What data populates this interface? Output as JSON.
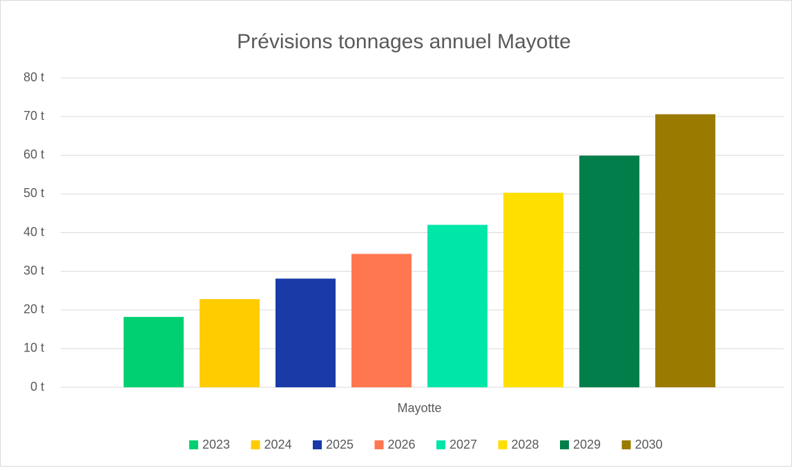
{
  "chart_data": {
    "type": "bar",
    "title": "Prévisions tonnages annuel Mayotte",
    "categories": [
      "Mayotte"
    ],
    "series": [
      {
        "name": "2023",
        "color": "#00d072",
        "values": [
          18.2
        ]
      },
      {
        "name": "2024",
        "color": "#ffcc00",
        "values": [
          22.8
        ]
      },
      {
        "name": "2025",
        "color": "#1a3aa8",
        "values": [
          28.1
        ]
      },
      {
        "name": "2026",
        "color": "#ff7751",
        "values": [
          34.5
        ]
      },
      {
        "name": "2027",
        "color": "#00e6a8",
        "values": [
          42
        ]
      },
      {
        "name": "2028",
        "color": "#ffdf00",
        "values": [
          50.3
        ]
      },
      {
        "name": "2029",
        "color": "#007f4a",
        "values": [
          59.9
        ]
      },
      {
        "name": "2030",
        "color": "#9a7b00",
        "values": [
          70.6
        ]
      }
    ],
    "ylim": [
      0,
      80
    ],
    "yticks": [
      {
        "value": 0,
        "label": "0 t"
      },
      {
        "value": 10,
        "label": "10 t"
      },
      {
        "value": 20,
        "label": "20 t"
      },
      {
        "value": 30,
        "label": "30 t"
      },
      {
        "value": 40,
        "label": "40 t"
      },
      {
        "value": 50,
        "label": "50 t"
      },
      {
        "value": 60,
        "label": "60 t"
      },
      {
        "value": 70,
        "label": "70 t"
      },
      {
        "value": 80,
        "label": "80 t"
      }
    ],
    "grid": true,
    "legend": "bottom"
  }
}
